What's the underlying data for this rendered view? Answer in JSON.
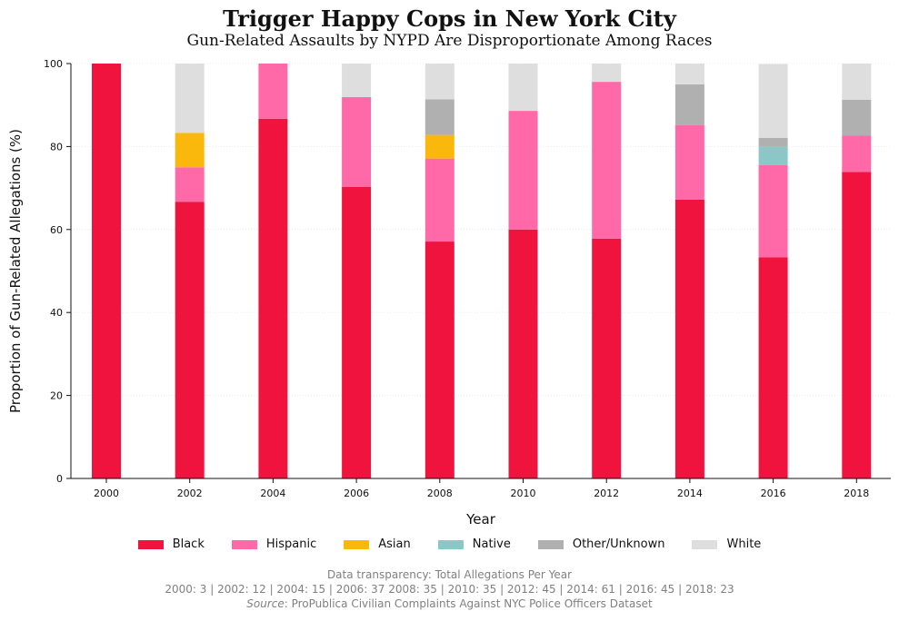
{
  "title": "Trigger Happy Cops in New York City",
  "subtitle": "Gun-Related Assaults by NYPD Are Disproportionate Among Races",
  "footer": {
    "line1": "Data transparency: Total Allegations Per Year",
    "line2": "2000: 3 | 2002: 12 | 2004: 15 | 2006: 37 2008: 35 | 2010: 35 | 2012: 45 | 2014: 61 | 2016: 45 | 2018: 23",
    "source_label": "Source",
    "source_text": ":  ProPublica Civilian Complaints Against NYC Police Officers Dataset"
  },
  "chart_data": {
    "type": "bar",
    "stacked": true,
    "title": "Trigger Happy Cops in New York City",
    "subtitle": "Gun-Related Assaults by NYPD Are Disproportionate Among Races",
    "xlabel": "Year",
    "ylabel": "Proportion of Gun-Related Allegations (%)",
    "ylim": [
      0,
      100
    ],
    "yticks": [
      0,
      20,
      40,
      60,
      80,
      100
    ],
    "grid": "y-dotted",
    "legend_position": "bottom",
    "categories": [
      "2000",
      "2002",
      "2004",
      "2006",
      "2008",
      "2010",
      "2012",
      "2014",
      "2016",
      "2018"
    ],
    "series": [
      {
        "name": "Black",
        "color": "#f0133e",
        "values": [
          100,
          66.7,
          86.7,
          70.3,
          57.1,
          60.0,
          57.8,
          67.2,
          53.3,
          73.9
        ]
      },
      {
        "name": "Hispanic",
        "color": "#ff69a8",
        "values": [
          0,
          8.3,
          13.3,
          21.6,
          20.0,
          28.6,
          37.8,
          18.0,
          22.2,
          8.7
        ]
      },
      {
        "name": "Asian",
        "color": "#fbb80c",
        "values": [
          0,
          8.3,
          0,
          0,
          5.7,
          0,
          0,
          0,
          0,
          0
        ]
      },
      {
        "name": "Native",
        "color": "#8cc7c7",
        "values": [
          0,
          0,
          0,
          0,
          0,
          0,
          0,
          0,
          4.4,
          0
        ]
      },
      {
        "name": "Other/Unknown",
        "color": "#b0b0b0",
        "values": [
          0,
          0,
          0,
          0,
          8.6,
          0,
          0,
          9.8,
          2.2,
          8.7
        ]
      },
      {
        "name": "White",
        "color": "#dedede",
        "values": [
          0,
          16.7,
          0,
          8.1,
          8.6,
          11.4,
          4.4,
          5.0,
          17.8,
          8.7
        ]
      }
    ]
  }
}
